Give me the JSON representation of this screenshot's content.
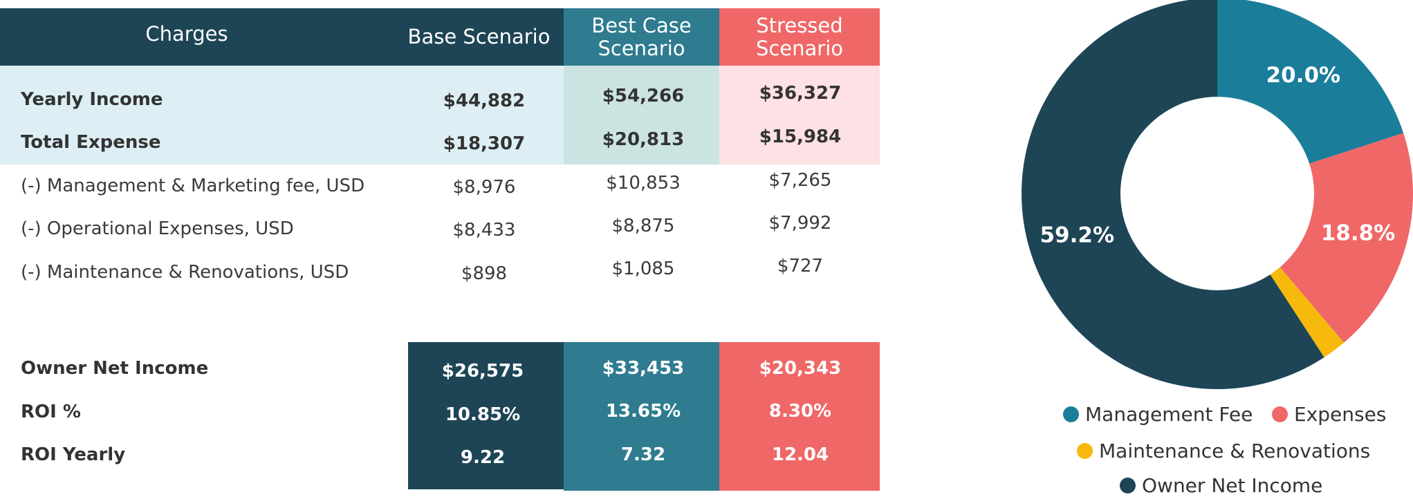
{
  "colors": {
    "dark": "#1d4556",
    "teal": "#2f7b8f",
    "coral": "#f06767",
    "light_blue": "#ddeff5",
    "light_green": "#cbe4e1",
    "light_pink": "#fee1e4",
    "pie_management": "#1a7e9a",
    "pie_expenses": "#f06767",
    "pie_maintenance": "#f6b90c",
    "pie_owner": "#1d4556"
  },
  "table": {
    "headers": {
      "charges": "Charges",
      "base": "Base Scenario",
      "best": "Best Case\nScenario",
      "stressed": "Stressed\nScenario"
    },
    "summary_rows": [
      {
        "label": "Yearly Income",
        "base": "$44,882",
        "best": "$54,266",
        "stressed": "$36,327"
      },
      {
        "label": "Total Expense",
        "base": "$18,307",
        "best": "$20,813",
        "stressed": "$15,984"
      }
    ],
    "detail_rows": [
      {
        "label": "(-) Management & Marketing fee, USD",
        "base": "$8,976",
        "best": "$10,853",
        "stressed": "$7,265"
      },
      {
        "label": "(-) Operational Expenses, USD",
        "base": "$8,433",
        "best": "$8,875",
        "stressed": "$7,992"
      },
      {
        "label": "(-) Maintenance & Renovations, USD",
        "base": "$898",
        "best": "$1,085",
        "stressed": "$727"
      }
    ],
    "result_rows": [
      {
        "label": "Owner Net Income",
        "base": "$26,575",
        "best": "$33,453",
        "stressed": "$20,343"
      },
      {
        "label": "ROI %",
        "base": "10.85%",
        "best": "13.65%",
        "stressed": "8.30%"
      },
      {
        "label": "ROI Yearly",
        "base": "9.22",
        "best": "7.32",
        "stressed": "12.04"
      }
    ]
  },
  "chart_data": {
    "type": "pie",
    "donut": true,
    "title": "",
    "slices": [
      {
        "name": "Management Fee",
        "value": 20.0,
        "label": "20.0%",
        "color": "#1a7e9a"
      },
      {
        "name": "Expenses",
        "value": 18.8,
        "label": "18.8%",
        "color": "#f06767"
      },
      {
        "name": "Maintenance & Renovations",
        "value": 2.0,
        "label": "",
        "color": "#f6b90c"
      },
      {
        "name": "Owner Net Income",
        "value": 59.2,
        "label": "59.2%",
        "color": "#1d4556"
      }
    ],
    "legend": [
      "Management Fee",
      "Expenses",
      "Maintenance & Renovations",
      "Owner Net Income"
    ],
    "legend_position": "bottom"
  }
}
